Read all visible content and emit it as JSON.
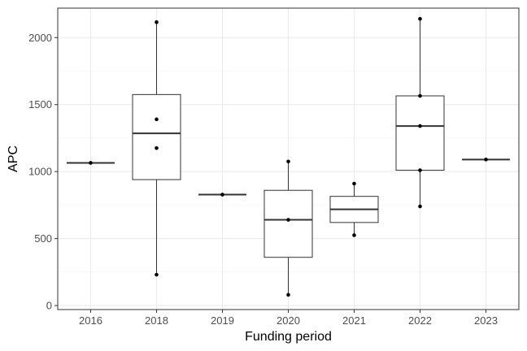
{
  "chart_data": {
    "type": "box",
    "xlabel": "Funding period",
    "ylabel": "APC",
    "categories": [
      "2016",
      "2018",
      "2019",
      "2020",
      "2021",
      "2022",
      "2023"
    ],
    "ylim": [
      -30,
      2220
    ],
    "yticks": [
      0,
      500,
      1000,
      1500,
      2000
    ],
    "grid": true,
    "boxes": [
      {
        "category": "2016",
        "q1": 1065,
        "median": 1065,
        "q3": 1065,
        "whisker_low": 1065,
        "whisker_high": 1065
      },
      {
        "category": "2018",
        "q1": 940,
        "median": 1285,
        "q3": 1575,
        "whisker_low": 230,
        "whisker_high": 2115
      },
      {
        "category": "2019",
        "q1": 828,
        "median": 828,
        "q3": 828,
        "whisker_low": 828,
        "whisker_high": 828
      },
      {
        "category": "2020",
        "q1": 360,
        "median": 640,
        "q3": 860,
        "whisker_low": 80,
        "whisker_high": 1075
      },
      {
        "category": "2021",
        "q1": 620,
        "median": 718,
        "q3": 815,
        "whisker_low": 525,
        "whisker_high": 910
      },
      {
        "category": "2022",
        "q1": 1010,
        "median": 1340,
        "q3": 1565,
        "whisker_low": 740,
        "whisker_high": 2140
      },
      {
        "category": "2023",
        "q1": 1090,
        "median": 1090,
        "q3": 1090,
        "whisker_low": 1090,
        "whisker_high": 1090
      }
    ],
    "points": [
      {
        "category": "2016",
        "values": [
          1065
        ]
      },
      {
        "category": "2018",
        "values": [
          2115,
          1390,
          1175,
          230
        ]
      },
      {
        "category": "2019",
        "values": [
          828
        ]
      },
      {
        "category": "2020",
        "values": [
          1075,
          640,
          80
        ]
      },
      {
        "category": "2021",
        "values": [
          910,
          525
        ]
      },
      {
        "category": "2022",
        "values": [
          2140,
          1565,
          1340,
          1010,
          740
        ]
      },
      {
        "category": "2023",
        "values": [
          1090
        ]
      }
    ]
  }
}
